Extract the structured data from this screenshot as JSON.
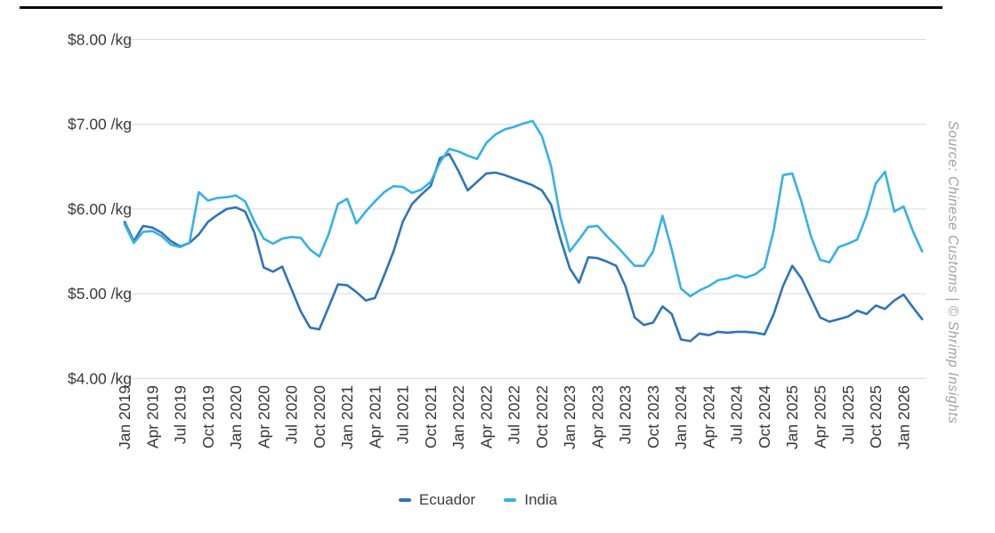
{
  "page": {
    "source_note": "Source: Chinese Customs | © Shrimp Insights"
  },
  "chart_data": {
    "type": "line",
    "unit": "$/kg",
    "grid": "horizontal",
    "legend_position": "bottom",
    "ylim": [
      4,
      8
    ],
    "y_ticks": [
      {
        "label": "$8.00 /kg",
        "value": 8
      },
      {
        "label": "$7.00 /kg",
        "value": 7
      },
      {
        "label": "$6.00 /kg",
        "value": 6
      },
      {
        "label": "$5.00 /kg",
        "value": 5
      },
      {
        "label": "$4.00 /kg",
        "value": 4
      }
    ],
    "x": [
      "Jan 2019",
      "Feb 2019",
      "Mar 2019",
      "Apr 2019",
      "May 2019",
      "Jun 2019",
      "Jul 2019",
      "Aug 2019",
      "Sep 2019",
      "Oct 2019",
      "Nov 2019",
      "Dec 2019",
      "Jan 2020",
      "Feb 2020",
      "Mar 2020",
      "Apr 2020",
      "May 2020",
      "Jun 2020",
      "Jul 2020",
      "Aug 2020",
      "Sep 2020",
      "Oct 2020",
      "Nov 2020",
      "Dec 2020",
      "Jan 2021",
      "Feb 2021",
      "Mar 2021",
      "Apr 2021",
      "May 2021",
      "Jun 2021",
      "Jul 2021",
      "Aug 2021",
      "Sep 2021",
      "Oct 2021",
      "Nov 2021",
      "Dec 2021",
      "Jan 2022",
      "Feb 2022",
      "Mar 2022",
      "Apr 2022",
      "May 2022",
      "Jun 2022",
      "Jul 2022",
      "Aug 2022",
      "Sep 2022",
      "Oct 2022",
      "Nov 2022",
      "Dec 2022",
      "Jan 2023",
      "Feb 2023",
      "Mar 2023",
      "Apr 2023",
      "May 2023",
      "Jun 2023",
      "Jul 2023",
      "Aug 2023",
      "Sep 2023",
      "Oct 2023",
      "Nov 2023",
      "Dec 2023",
      "Jan 2024",
      "Feb 2024",
      "Mar 2024",
      "Apr 2024",
      "May 2024",
      "Jun 2024",
      "Jul 2024",
      "Aug 2024",
      "Sep 2024",
      "Oct 2024",
      "Nov 2024",
      "Dec 2024",
      "Jan 2025",
      "Feb 2025",
      "Mar 2025",
      "Apr 2025",
      "May 2025",
      "Jun 2025",
      "Jul 2025",
      "Aug 2025",
      "Sep 2025",
      "Oct 2025",
      "Nov 2025",
      "Dec 2025",
      "Jan 2026",
      "Feb 2026",
      "Mar 2026"
    ],
    "x_tick_labels": [
      "Jan 2019",
      "Apr 2019",
      "Jul 2019",
      "Oct 2019",
      "Jan 2020",
      "Apr 2020",
      "Jul 2020",
      "Oct 2020",
      "Jan 2021",
      "Apr 2021",
      "Jul 2021",
      "Oct 2021",
      "Jan 2022",
      "Apr 2022",
      "Jul 2022",
      "Oct 2022",
      "Jan 2023",
      "Apr 2023",
      "Jul 2023",
      "Oct 2023",
      "Jan 2024",
      "Apr 2024",
      "Jul 2024",
      "Oct 2024",
      "Jan 2025",
      "Apr 2025",
      "Jul 2025",
      "Oct 2025",
      "Jan 2026"
    ],
    "series": [
      {
        "name": "Ecuador",
        "color": "#2e74b9",
        "values": [
          5.85,
          5.62,
          5.8,
          5.78,
          5.72,
          5.62,
          5.56,
          5.6,
          5.7,
          5.85,
          5.93,
          6.0,
          6.02,
          5.97,
          5.72,
          5.31,
          5.26,
          5.32,
          5.05,
          4.79,
          4.6,
          4.58,
          4.84,
          5.11,
          5.1,
          5.02,
          4.92,
          4.95,
          5.22,
          5.5,
          5.85,
          6.06,
          6.17,
          6.27,
          6.6,
          6.65,
          6.45,
          6.22,
          6.32,
          6.42,
          6.43,
          6.4,
          6.36,
          6.32,
          6.28,
          6.22,
          6.05,
          5.65,
          5.3,
          5.13,
          5.43,
          5.42,
          5.38,
          5.33,
          5.09,
          4.72,
          4.63,
          4.66,
          4.85,
          4.76,
          4.46,
          4.44,
          4.53,
          4.51,
          4.55,
          4.54,
          4.55,
          4.55,
          4.54,
          4.52,
          4.76,
          5.09,
          5.33,
          5.18,
          4.95,
          4.72,
          4.67,
          4.7,
          4.73,
          4.8,
          4.76,
          4.86,
          4.82,
          4.92,
          4.99,
          4.84,
          4.7
        ]
      },
      {
        "name": "India",
        "color": "#34b1e8",
        "values": [
          5.82,
          5.6,
          5.73,
          5.74,
          5.68,
          5.58,
          5.55,
          5.6,
          6.2,
          6.1,
          6.13,
          6.14,
          6.16,
          6.09,
          5.85,
          5.65,
          5.59,
          5.65,
          5.67,
          5.66,
          5.52,
          5.44,
          5.7,
          6.06,
          6.12,
          5.83,
          5.97,
          6.09,
          6.2,
          6.27,
          6.26,
          6.19,
          6.23,
          6.32,
          6.55,
          6.71,
          6.68,
          6.63,
          6.59,
          6.78,
          6.88,
          6.94,
          6.97,
          7.01,
          7.04,
          6.86,
          6.5,
          5.9,
          5.5,
          5.64,
          5.79,
          5.8,
          5.68,
          5.57,
          5.45,
          5.33,
          5.33,
          5.5,
          5.92,
          5.52,
          5.06,
          4.97,
          5.04,
          5.09,
          5.16,
          5.18,
          5.22,
          5.19,
          5.23,
          5.31,
          5.75,
          6.4,
          6.42,
          6.08,
          5.68,
          5.4,
          5.37,
          5.55,
          5.59,
          5.64,
          5.92,
          6.3,
          6.44,
          5.97,
          6.03,
          5.74,
          5.5
        ]
      }
    ]
  }
}
